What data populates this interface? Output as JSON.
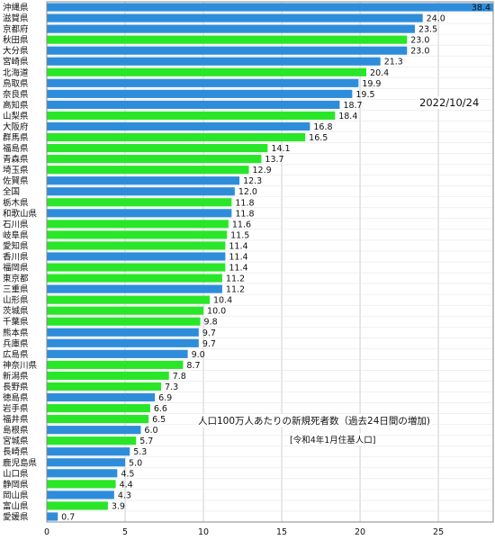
{
  "chart_data": {
    "type": "bar",
    "orientation": "horizontal",
    "title": "人口100万人あたりの新規死者数（過去24日間の増加)",
    "subtitle": "[令和4年1月住基人口]",
    "date": "2022/10/24",
    "xlim": [
      0,
      28.5
    ],
    "xticks": [
      0,
      5,
      10,
      15,
      20,
      25
    ],
    "grid": true,
    "colors": {
      "blue": "#2e8ddb",
      "green": "#29e629"
    },
    "categories": [
      "沖縄県",
      "滋賀県",
      "京都府",
      "秋田県",
      "大分県",
      "宮崎県",
      "北海道",
      "鳥取県",
      "奈良県",
      "高知県",
      "山梨県",
      "大阪府",
      "群馬県",
      "福島県",
      "青森県",
      "埼玉県",
      "佐賀県",
      "全国",
      "栃木県",
      "和歌山県",
      "石川県",
      "岐阜県",
      "愛知県",
      "香川県",
      "福岡県",
      "東京都",
      "三重県",
      "山形県",
      "茨城県",
      "千葉県",
      "熊本県",
      "兵庫県",
      "広島県",
      "神奈川県",
      "新潟県",
      "長野県",
      "徳島県",
      "岩手県",
      "福井県",
      "島根県",
      "宮城県",
      "長崎県",
      "鹿児島県",
      "山口県",
      "静岡県",
      "岡山県",
      "富山県",
      "愛媛県"
    ],
    "values": [
      38.4,
      24.0,
      23.5,
      23.0,
      23.0,
      21.3,
      20.4,
      19.9,
      19.5,
      18.7,
      18.4,
      16.8,
      16.5,
      14.1,
      13.7,
      12.9,
      12.3,
      12.0,
      11.8,
      11.8,
      11.6,
      11.5,
      11.4,
      11.4,
      11.4,
      11.2,
      11.2,
      10.4,
      10.0,
      9.8,
      9.7,
      9.7,
      9.0,
      8.7,
      7.8,
      7.3,
      6.9,
      6.6,
      6.5,
      6.0,
      5.7,
      5.3,
      5.0,
      4.5,
      4.4,
      4.3,
      3.9,
      0.7
    ],
    "value_labels": [
      "38.4",
      "24.0",
      "23.5",
      "23.0",
      "23.0",
      "21.3",
      "20.4",
      "19.9",
      "19.5",
      "18.7",
      "18.4",
      "16.8",
      "16.5",
      "14.1",
      "13.7",
      "12.9",
      "12.3",
      "12.0",
      "11.8",
      "11.8",
      "11.6",
      "11.5",
      "11.4",
      "11.4",
      "11.4",
      "11.2",
      "11.2",
      "10.4",
      "10.0",
      "9.8",
      "9.7",
      "9.7",
      "9.0",
      "8.7",
      "7.8",
      "7.3",
      "6.9",
      "6.6",
      "6.5",
      "6.0",
      "5.7",
      "5.3",
      "5.0",
      "4.5",
      "4.4",
      "4.3",
      "3.9",
      "0.7"
    ],
    "bar_colors": [
      "blue",
      "blue",
      "blue",
      "green",
      "blue",
      "blue",
      "green",
      "blue",
      "blue",
      "blue",
      "green",
      "blue",
      "green",
      "green",
      "green",
      "green",
      "blue",
      "blue",
      "green",
      "blue",
      "green",
      "green",
      "green",
      "blue",
      "green",
      "green",
      "blue",
      "green",
      "green",
      "green",
      "blue",
      "blue",
      "blue",
      "green",
      "green",
      "green",
      "blue",
      "green",
      "green",
      "blue",
      "green",
      "blue",
      "blue",
      "blue",
      "green",
      "blue",
      "green",
      "blue"
    ]
  }
}
